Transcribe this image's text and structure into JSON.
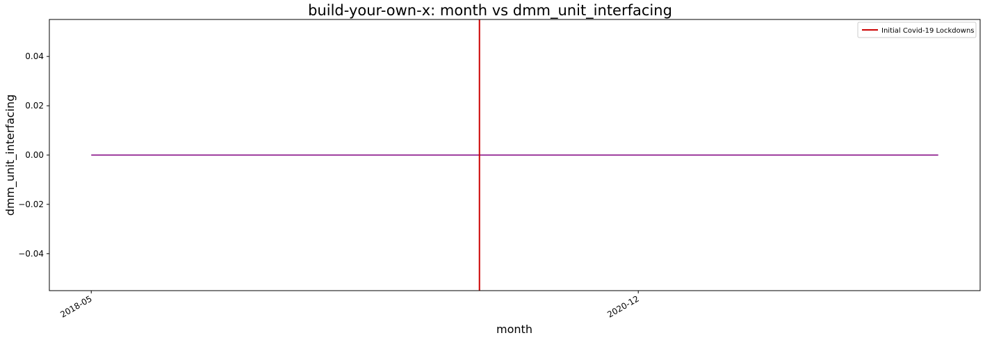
{
  "chart_data": {
    "type": "line",
    "title": "build-your-own-x: month vs dmm_unit_interfacing",
    "xlabel": "month",
    "ylabel": "dmm_unit_interfacing",
    "x_ticks": [
      "2018-05",
      "2020-12"
    ],
    "y_ticks": [
      "0.04",
      "0.02",
      "0.00",
      "−0.02",
      "−0.04"
    ],
    "ylim": [
      -0.055,
      0.055
    ],
    "x_range": [
      "2018-05",
      "2022-05"
    ],
    "series": [
      {
        "color": "#800080",
        "x": [
          "2018-05",
          "2018-06",
          "2018-07",
          "2018-08",
          "2018-09",
          "2018-10",
          "2018-11",
          "2018-12",
          "2019-01",
          "2019-02",
          "2019-03",
          "2019-04",
          "2019-05",
          "2019-06",
          "2019-07",
          "2019-08",
          "2019-09",
          "2019-10",
          "2019-11",
          "2019-12",
          "2020-01",
          "2020-02",
          "2020-03",
          "2020-04",
          "2020-05",
          "2020-06",
          "2020-07",
          "2020-08",
          "2020-09",
          "2020-10",
          "2020-11",
          "2020-12",
          "2021-01",
          "2021-02",
          "2021-03",
          "2021-04",
          "2021-05",
          "2021-06",
          "2021-07",
          "2021-08",
          "2021-09",
          "2021-10",
          "2021-11",
          "2021-12",
          "2022-01",
          "2022-02",
          "2022-03",
          "2022-04",
          "2022-05"
        ],
        "y": [
          0,
          0,
          0,
          0,
          0,
          0,
          0,
          0,
          0,
          0,
          0,
          0,
          0,
          0,
          0,
          0,
          0,
          0,
          0,
          0,
          0,
          0,
          0,
          0,
          0,
          0,
          0,
          0,
          0,
          0,
          0,
          0,
          0,
          0,
          0,
          0,
          0,
          0,
          0,
          0,
          0,
          0,
          0,
          0,
          0,
          0,
          0,
          0,
          0
        ]
      }
    ],
    "vline": {
      "x": "2020-03",
      "label": "Initial Covid-19 Lockdowns",
      "color": "#cc0000"
    },
    "legend": {
      "position": "top-right",
      "entries": [
        "Initial Covid-19 Lockdowns"
      ]
    },
    "grid": false
  }
}
